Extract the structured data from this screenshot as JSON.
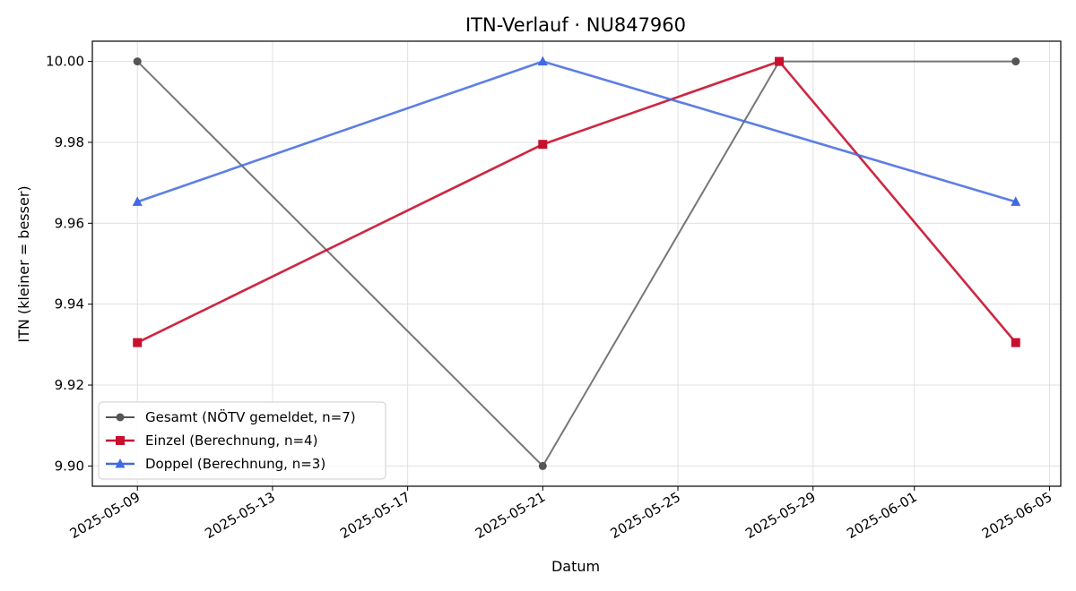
{
  "chart_data": {
    "type": "line",
    "title": "ITN-Verlauf · NU847960",
    "xlabel": "Datum",
    "ylabel": "ITN  (kleiner = besser)",
    "x_ticks": [
      "2025-05-09",
      "2025-05-13",
      "2025-05-17",
      "2025-05-21",
      "2025-05-25",
      "2025-05-29",
      "2025-06-01",
      "2025-06-05"
    ],
    "y_ticks": [
      "9.90",
      "9.92",
      "9.94",
      "9.96",
      "9.98",
      "10.00"
    ],
    "ylim": [
      9.895,
      10.005
    ],
    "xlim": [
      "2025-05-07T16:00",
      "2025-06-05T08:00"
    ],
    "grid": true,
    "legend_position": "lower-left",
    "series": [
      {
        "name": "Gesamt (NÖTV gemeldet, n=7)",
        "color": "#555555",
        "marker": "circle",
        "x": [
          "2025-05-09",
          "2025-05-21",
          "2025-05-28",
          "2025-06-04"
        ],
        "y": [
          10.0,
          9.9,
          10.0,
          10.0
        ]
      },
      {
        "name": "Einzel (Berechnung, n=4)",
        "color": "#c8102e",
        "marker": "square",
        "x": [
          "2025-05-09",
          "2025-05-21",
          "2025-05-28",
          "2025-06-04"
        ],
        "y": [
          9.9305,
          9.9795,
          10.0,
          9.9305
        ]
      },
      {
        "name": "Doppel (Berechnung, n=3)",
        "color": "#4169e1",
        "marker": "triangle",
        "x": [
          "2025-05-09",
          "2025-05-21",
          "2025-05-28",
          "2025-06-04"
        ],
        "y": [
          9.9653,
          10.0,
          null,
          9.9653
        ]
      }
    ]
  }
}
